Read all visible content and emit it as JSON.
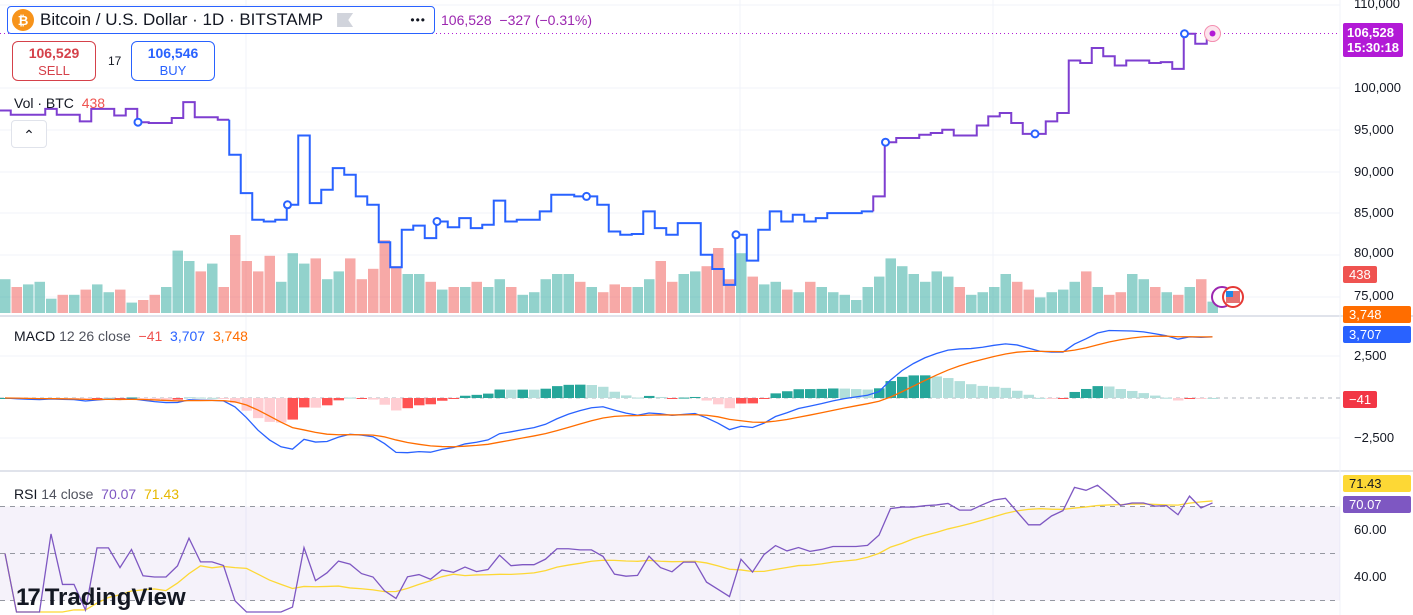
{
  "header": {
    "title": "Bitcoin / U.S. Dollar · 1D · BITSTAMP",
    "btc_icon": "₿",
    "more_label": "•••",
    "last_price": "106,528",
    "change": "−327 (−0.31%)"
  },
  "trade": {
    "sell_price": "106,529",
    "sell_label": "SELL",
    "spread": "17",
    "buy_price": "106,546",
    "buy_label": "BUY"
  },
  "volume_legend": {
    "label": "Vol · BTC",
    "value": "438"
  },
  "macd_legend": {
    "label": "MACD",
    "params": "12 26 close",
    "hist": "−41",
    "macd": "3,707",
    "signal": "3,748"
  },
  "rsi_legend": {
    "label": "RSI",
    "params": "14 close",
    "rsi": "70.07",
    "ma": "71.43"
  },
  "price_axis": [
    "110,000",
    "100,000",
    "95,000",
    "90,000",
    "85,000",
    "80,000",
    "75,000"
  ],
  "macd_axis": [
    "2,500",
    "−2,500"
  ],
  "rsi_axis": [
    "60.00",
    "40.00"
  ],
  "badges": {
    "price": "106,528",
    "countdown": "15:30:18",
    "volume": "438",
    "signal": "3,748",
    "macd": "3,707",
    "hist": "−41",
    "rsi_ma": "71.43",
    "rsi": "70.07"
  },
  "branding": {
    "logo_text": "TradingView"
  },
  "colors": {
    "up": "#26a69a",
    "down": "#ef5350",
    "line_blue": "#2962ff",
    "line_purple": "#7e3fd0",
    "macd": "#2962ff",
    "signal": "#ff6d00",
    "rsi": "#7e57c2",
    "rsi_ma": "#fdd835",
    "price_badge": "#b21ad6"
  },
  "chart_data": {
    "type": "line",
    "title": "Bitcoin / U.S. Dollar · 1D · BITSTAMP",
    "ylim": [
      74000,
      110000
    ],
    "closes": [
      97300,
      96800,
      96800,
      96800,
      97500,
      96800,
      96800,
      96000,
      97500,
      97500,
      96700,
      97500,
      95900,
      95800,
      95800,
      96400,
      98300,
      96500,
      96500,
      96200,
      92000,
      87400,
      84200,
      84000,
      84200,
      86000,
      94300,
      86200,
      87800,
      90400,
      89600,
      87000,
      86000,
      81500,
      78500,
      83000,
      83500,
      82000,
      84000,
      83300,
      84400,
      83200,
      83600,
      86500,
      84000,
      84200,
      84200,
      85200,
      87200,
      87200,
      87000,
      87000,
      86000,
      82800,
      82400,
      82500,
      85200,
      83200,
      82400,
      83800,
      83800,
      80000,
      78300,
      76400,
      82400,
      79300,
      83000,
      85200,
      84000,
      84800,
      84000,
      84400,
      85000,
      85000,
      85000,
      85200,
      87000,
      93500,
      94000,
      94000,
      94400,
      94600,
      95000,
      94300,
      94300,
      95500,
      96600,
      97000,
      95800,
      94500,
      94500,
      96000,
      97000,
      103300,
      103000,
      104800,
      103800,
      102700,
      103300,
      103300,
      103000,
      103100,
      102300,
      106500,
      105300,
      106528
    ],
    "volumes": [
      1300,
      1000,
      1100,
      1200,
      550,
      700,
      700,
      900,
      1100,
      800,
      900,
      400,
      500,
      700,
      1000,
      2400,
      2000,
      1600,
      1900,
      1000,
      3000,
      2000,
      1600,
      2200,
      1200,
      2300,
      1900,
      2100,
      1300,
      1600,
      2100,
      1300,
      1700,
      2800,
      1800,
      1500,
      1500,
      1200,
      900,
      1000,
      1000,
      1200,
      1000,
      1300,
      1000,
      700,
      800,
      1300,
      1500,
      1500,
      1200,
      1000,
      800,
      1100,
      1000,
      1000,
      1300,
      2000,
      1200,
      1500,
      1600,
      1800,
      2500,
      1300,
      2300,
      1400,
      1100,
      1200,
      900,
      800,
      1200,
      1000,
      800,
      700,
      500,
      1000,
      1400,
      2100,
      1800,
      1500,
      1200,
      1600,
      1400,
      1000,
      700,
      800,
      1000,
      1500,
      1200,
      900,
      600,
      800,
      900,
      1200,
      1600,
      1000,
      700,
      800,
      1500,
      1300,
      1000,
      800,
      700,
      1000,
      1300,
      438
    ],
    "event_markers": [
      12,
      25,
      38,
      51,
      64,
      77,
      90,
      103
    ]
  }
}
